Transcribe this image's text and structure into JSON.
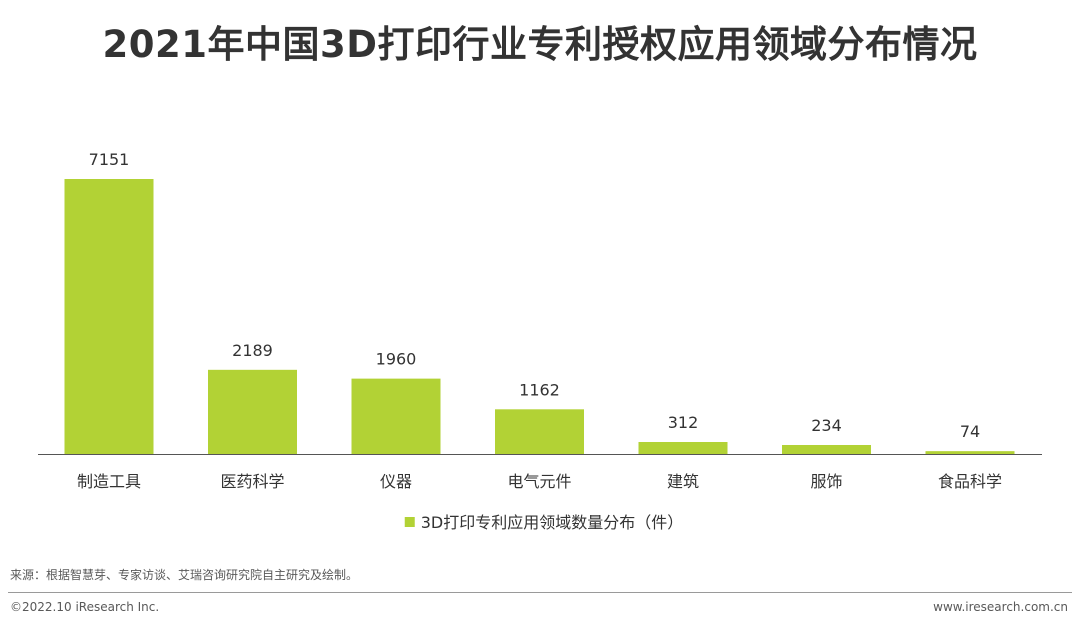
{
  "title": "2021年中国3D打印行业专利授权应用领域分布情况",
  "chart_data": {
    "type": "bar",
    "categories": [
      "制造工具",
      "医药科学",
      "仪器",
      "电气元件",
      "建筑",
      "服饰",
      "食品科学"
    ],
    "series": [
      {
        "name": "3D打印专利应用领域数量分布（件）",
        "values": [
          7151,
          2189,
          1960,
          1162,
          312,
          234,
          74
        ],
        "color": "#b2d235"
      }
    ],
    "data_labels": [
      "7151",
      "2189",
      "1960",
      "1162",
      "312",
      "234",
      "74"
    ],
    "legend_position": "bottom",
    "grid": false,
    "ylim": [
      0,
      7151
    ]
  },
  "source": "来源：根据智慧芽、专家访谈、艾瑞咨询研究院自主研究及绘制。",
  "footer": {
    "copyright": "©2022.10 iResearch Inc.",
    "website": "www.iresearch.com.cn"
  }
}
